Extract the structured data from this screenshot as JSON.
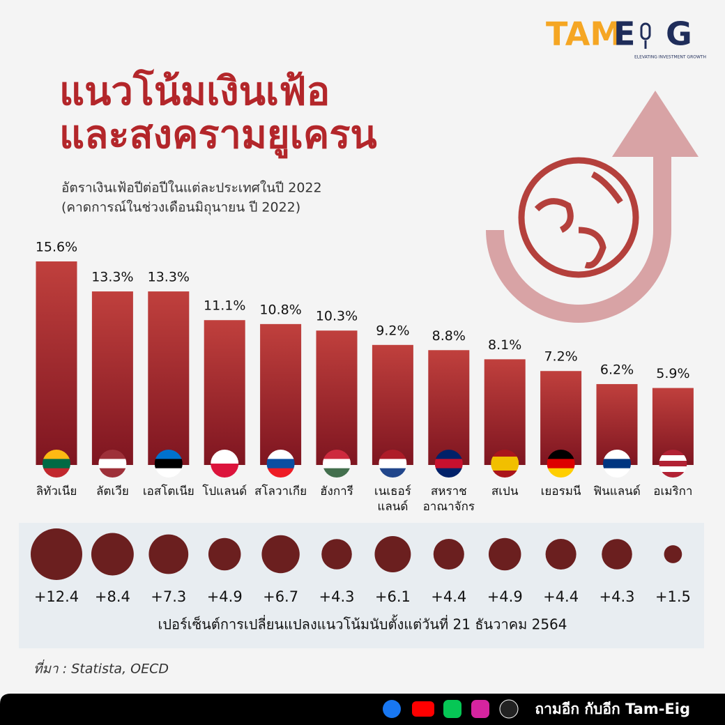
{
  "logo": {
    "part1": "TAM",
    "part2": "E",
    "part3": "G",
    "tagline": "ELEVATING INVESTMENT GROWTH"
  },
  "chart_data": [
    {
      "type": "bar",
      "title": [
        "แนวโน้มเงินเฟ้อ",
        "และสงครามยูเครน"
      ],
      "subtitle": [
        "อัตราเงินเฟ้อปีต่อปีในแต่ละประเทศในปี 2022",
        "(คาดการณ์ในช่วงเดือนมิถุนายน ปี 2022)"
      ],
      "categories": [
        "ลิทัวเนีย",
        "ลัตเวีย",
        "เอสโตเนีย",
        "โปแลนด์",
        "สโลวาเกีย",
        "ฮังการี",
        "เนเธอร์\nแลนด์",
        "สหราช\nอาณาจักร",
        "สเปน",
        "เยอรมนี",
        "ฟินแลนด์",
        "อเมริกา"
      ],
      "values": [
        15.6,
        13.3,
        13.3,
        11.1,
        10.8,
        10.3,
        9.2,
        8.8,
        8.1,
        7.2,
        6.2,
        5.9
      ],
      "value_labels": [
        "15.6%",
        "13.3%",
        "13.3%",
        "11.1%",
        "10.8%",
        "10.3%",
        "9.2%",
        "8.8%",
        "8.1%",
        "7.2%",
        "6.2%",
        "5.9%"
      ],
      "color": "#9e2a2f"
    },
    {
      "type": "bubble",
      "values": [
        12.4,
        8.4,
        7.3,
        4.9,
        6.7,
        4.3,
        6.1,
        4.4,
        4.9,
        4.4,
        4.3,
        1.5
      ],
      "value_labels": [
        "+12.4",
        "+8.4",
        "+7.3",
        "+4.9",
        "+6.7",
        "+4.3",
        "+6.1",
        "+4.4",
        "+4.9",
        "+4.4",
        "+4.3",
        "+1.5"
      ],
      "xlabel": "เปอร์เซ็นต์การเปลี่ยนแปลงแนวโน้มนับตั้งแต่วันที่ 21 ธันวาคม 2564",
      "color": "#6b1f1f"
    }
  ],
  "source": "ที่มา : Statista, OECD",
  "footer": "ถามอีก กับอีก Tam-Eig"
}
